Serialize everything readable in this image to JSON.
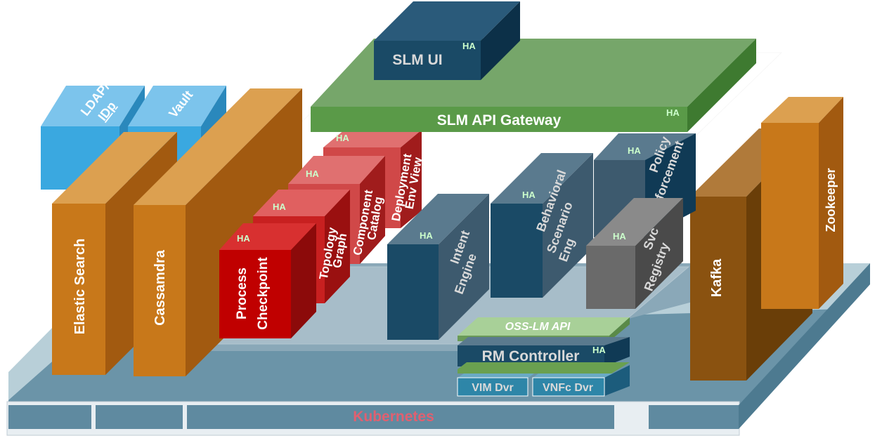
{
  "labels": {
    "slm_ui": "SLM UI",
    "slm_api_gateway": "SLM API Gateway",
    "ldap_idp_1": "LDAP/",
    "ldap_idp_2": "IDp",
    "vault": "Vault",
    "elastic_search": "Elastic Search",
    "cassandra": "Cassamdra",
    "process_checkpoint_1": "Process",
    "process_checkpoint_2": "Checkpoint",
    "topology_graph_1": "Topology",
    "topology_graph_2": "Graph",
    "component_catalog_1": "Component",
    "component_catalog_2": "Catalog",
    "deployment_env_view_1": "Deployment",
    "deployment_env_view_2": "Env View",
    "intent_engine_1": "Intent",
    "intent_engine_2": "Engine",
    "behavioral_1": "Behavioral",
    "behavioral_2": "Scenario",
    "behavioral_3": "Eng",
    "policy_1": "Policy",
    "policy_2": "Enforcement",
    "svc_registry_1": "Svc",
    "svc_registry_2": "Registry",
    "oss_lm_api": "OSS-LM API",
    "rm_controller": "RM Controller",
    "vim_dvr": "VIM Dvr",
    "vnfc_dvr": "VNFc Dvr",
    "kafka": "Kafka",
    "zookeeper": "Zookeeper",
    "kubernetes": "Kubernetes",
    "ha": "HA"
  },
  "colors": {
    "kubernetes_label": "#e06070",
    "red_block": "#c00000",
    "green_block": "#70a060",
    "dark_blue_block": "#1a4a66",
    "orange_block": "#c8781a",
    "light_blue_block": "#3aa8e0",
    "ha_label": "#ccffcc"
  }
}
